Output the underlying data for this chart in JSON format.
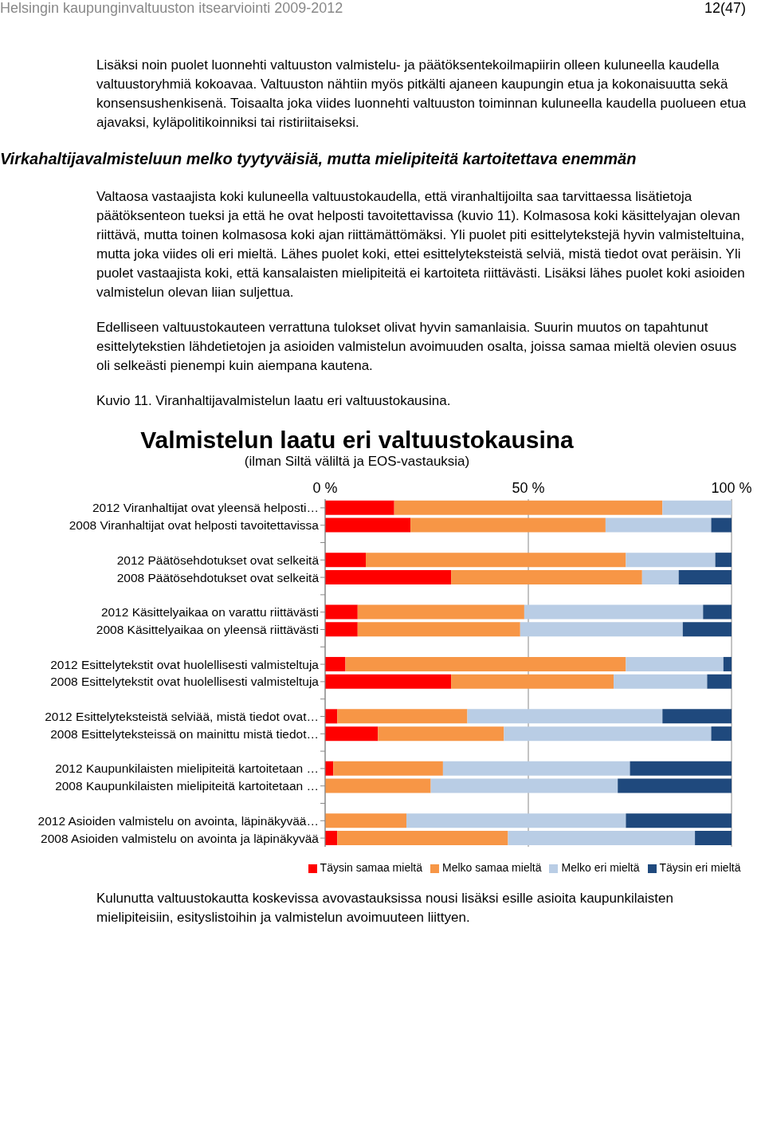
{
  "chart_data": {
    "type": "bar",
    "orientation": "horizontal",
    "stacked": true,
    "title": "Valmistelun laatu eri valtuustokausina",
    "subtitle": "(ilman Siltä väliltä ja EOS-vastauksia)",
    "annotations": [
      "Helsingin kaupunginvaltuuston itsearviointi 2009-2012",
      "12(47)",
      "Lisäksi noin puolet luonnehti valtuuston valmistelu- ja päätöksentekoilmapiirin olleen kuluneella kaudella valtuustoryhmiä kokoavaa. Valtuuston nähtiin myös pitkälti ajaneen kaupungin etua ja kokonaisuutta sekä konsensushenkisenä. Toisaalta joka viides luonnehti valtuuston toiminnan kuluneella kaudella puolueen etua ajavaksi, kyläpolitikoinniksi tai ristiriitaiseksi.",
      "Virkahaltijavalmisteluun melko tyytyväisiä, mutta mielipiteitä kartoitettava enemmän",
      "Valtaosa vastaajista koki kuluneella valtuustokaudella, että viranhaltijoilta saa tarvittaessa lisätietoja päätöksenteon tueksi ja että he ovat helposti tavoitettavissa (kuvio 11). Kolmasosa koki käsittelyajan olevan riittävä, mutta toinen kolmasosa koki ajan riittämättömäksi. Yli puolet piti esittelytekstejä hyvin valmisteltuina, mutta joka viides oli eri mieltä. Lähes puolet koki, ettei esittelyteksteistä selviä, mistä tiedot ovat peräisin. Yli puolet vastaajista koki, että kansalaisten mielipiteitä ei kartoiteta riittävästi. Lisäksi lähes puolet koki asioiden valmistelun olevan liian suljettua.",
      "Edelliseen valtuustokauteen verrattuna tulokset olivat hyvin samanlaisia. Suurin muutos on tapahtunut esittelytekstien lähdetietojen ja asioiden valmistelun avoimuuden osalta, joissa samaa mieltä olevien osuus oli selkeästi pienempi kuin aiempana kautena.",
      "Kuvio 11. Viranhaltijavalmistelun laatu eri valtuustokausina.",
      "Kulunutta valtuustokautta koskevissa avovastauksissa nousi lisäksi esille asioita kaupunkilaisten mielipiteisiin, esityslistoihin ja valmistelun avoimuuteen liittyen."
    ],
    "categories": [
      "2012 Viranhaltijat ovat yleensä helposti…",
      "2008 Viranhaltijat ovat helposti tavoitettavissa",
      null,
      "2012 Päätösehdotukset ovat selkeitä",
      "2008 Päätösehdotukset ovat selkeitä",
      null,
      "2012 Käsittelyaikaa on varattu riittävästi",
      "2008 Käsittelyaikaa on yleensä riittävästi",
      null,
      "2012 Esittelytekstit ovat huolellisesti valmisteltuja",
      "2008 Esittelytekstit ovat huolellisesti valmisteltuja",
      null,
      "2012 Esittelyteksteistä selviää, mistä tiedot ovat…",
      "2008 Esittelyteksteissä on mainittu mistä tiedot…",
      null,
      "2012 Kaupunkilaisten mielipiteitä kartoitetaan …",
      "2008 Kaupunkilaisten mielipiteitä kartoitetaan …",
      null,
      "2012 Asioiden valmistelu on avointa, läpinäkyvää…",
      "2008 Asioiden valmistelu on avointa ja läpinäkyvää"
    ],
    "series": [
      {
        "name": "Täysin samaa mieltä",
        "color": "#ff0000",
        "values": [
          17,
          21,
          null,
          10,
          31,
          null,
          8,
          8,
          null,
          5,
          31,
          null,
          3,
          13,
          null,
          2,
          0,
          null,
          0,
          3
        ]
      },
      {
        "name": "Melko samaa mieltä",
        "color": "#f79646",
        "values": [
          66,
          48,
          null,
          64,
          47,
          null,
          41,
          40,
          null,
          69,
          40,
          null,
          32,
          31,
          null,
          27,
          26,
          null,
          20,
          42
        ]
      },
      {
        "name": "Melko eri mieltä",
        "color": "#b9cde5",
        "values": [
          17,
          26,
          null,
          22,
          9,
          null,
          44,
          40,
          null,
          24,
          23,
          null,
          48,
          51,
          null,
          46,
          46,
          null,
          54,
          46
        ]
      },
      {
        "name": "Täysin eri mieltä",
        "color": "#1f497d",
        "values": [
          0,
          5,
          null,
          4,
          13,
          null,
          7,
          12,
          null,
          2,
          6,
          null,
          17,
          5,
          null,
          25,
          28,
          null,
          26,
          9
        ]
      }
    ],
    "xlim": [
      0,
      100
    ],
    "xticks": [
      {
        "value": 0,
        "label": "0 %"
      },
      {
        "value": 50,
        "label": "50 %"
      },
      {
        "value": 100,
        "label": "100 %"
      }
    ],
    "grid": "x",
    "legend": "bottom"
  }
}
